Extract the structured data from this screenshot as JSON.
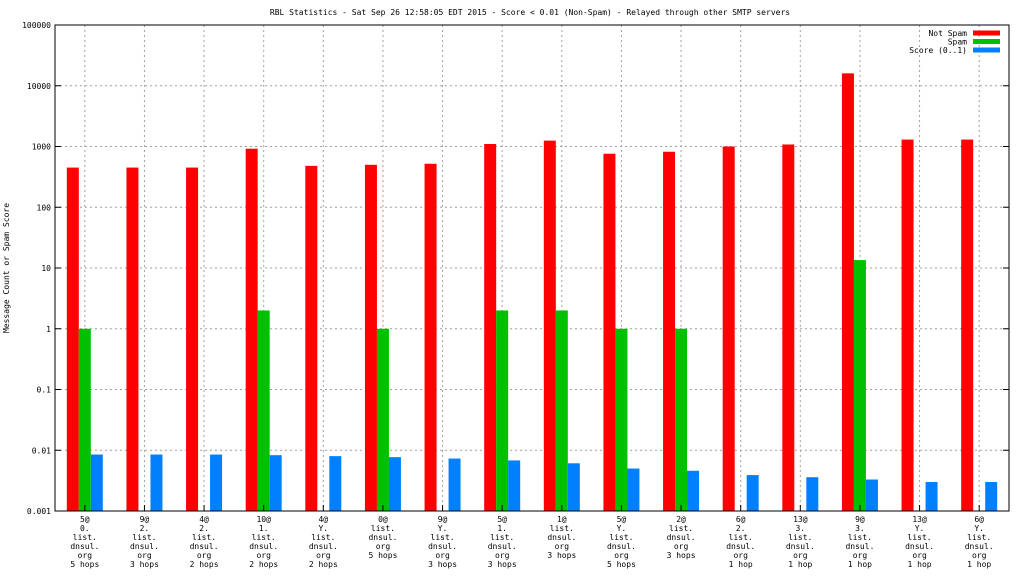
{
  "chart_data": {
    "type": "bar",
    "title": "RBL Statistics - Sat Sep 26 12:58:05 EDT 2015 - Score < 0.01 (Non-Spam) - Relayed through other SMTP servers",
    "ylabel": "Message Count or Spam Score",
    "xlabel": "",
    "yscale": "log",
    "ylim": [
      0.001,
      100000
    ],
    "yticks": [
      "0.001",
      "0.01",
      "0.1",
      "1",
      "10",
      "100",
      "1000",
      "10000",
      "100000"
    ],
    "grid": true,
    "legend_position": "top-right",
    "categories": [
      [
        "5@",
        "0.",
        "list.",
        "dnsul.",
        "org",
        "5 hops"
      ],
      [
        "9@",
        "2.",
        "list.",
        "dnsul.",
        "org",
        "3 hops"
      ],
      [
        "4@",
        "2.",
        "list.",
        "dnsul.",
        "org",
        "2 hops"
      ],
      [
        "10@",
        "1.",
        "list.",
        "dnsul.",
        "org",
        "2 hops"
      ],
      [
        "4@",
        "Y.",
        "list.",
        "dnsul.",
        "org",
        "2 hops"
      ],
      [
        "0@",
        "list.",
        "dnsul.",
        "org",
        "5 hops"
      ],
      [
        "9@",
        "Y.",
        "list.",
        "dnsul.",
        "org",
        "3 hops"
      ],
      [
        "5@",
        "1.",
        "list.",
        "dnsul.",
        "org",
        "3 hops"
      ],
      [
        "1@",
        "list.",
        "dnsul.",
        "org",
        "3 hops"
      ],
      [
        "5@",
        "Y.",
        "list.",
        "dnsul.",
        "org",
        "5 hops"
      ],
      [
        "2@",
        "list.",
        "dnsul.",
        "org",
        "3 hops"
      ],
      [
        "6@",
        "2.",
        "list.",
        "dnsul.",
        "org",
        "1 hop"
      ],
      [
        "13@",
        "3.",
        "list.",
        "dnsul.",
        "org",
        "1 hop"
      ],
      [
        "9@",
        "3.",
        "list.",
        "dnsul.",
        "org",
        "1 hop"
      ],
      [
        "13@",
        "Y.",
        "list.",
        "dnsul.",
        "org",
        "1 hop"
      ],
      [
        "6@",
        "Y.",
        "list.",
        "dnsul.",
        "org",
        "1 hop"
      ]
    ],
    "series": [
      {
        "name": "Not Spam",
        "color": "#ff0000",
        "values": [
          450,
          450,
          450,
          920,
          480,
          500,
          520,
          1100,
          1250,
          760,
          820,
          1000,
          1080,
          16000,
          1300,
          1300
        ]
      },
      {
        "name": "Spam",
        "color": "#00c000",
        "values": [
          1,
          null,
          null,
          2,
          null,
          1,
          null,
          2,
          2,
          1,
          1,
          null,
          null,
          13.5,
          null,
          null
        ]
      },
      {
        "name": "Score (0..1)",
        "color": "#0080ff",
        "values": [
          0.0085,
          0.0085,
          0.0085,
          0.0083,
          0.008,
          0.0077,
          0.0073,
          0.0068,
          0.0061,
          0.005,
          0.0046,
          0.0039,
          0.0036,
          0.0033,
          0.003,
          0.003
        ]
      }
    ]
  }
}
